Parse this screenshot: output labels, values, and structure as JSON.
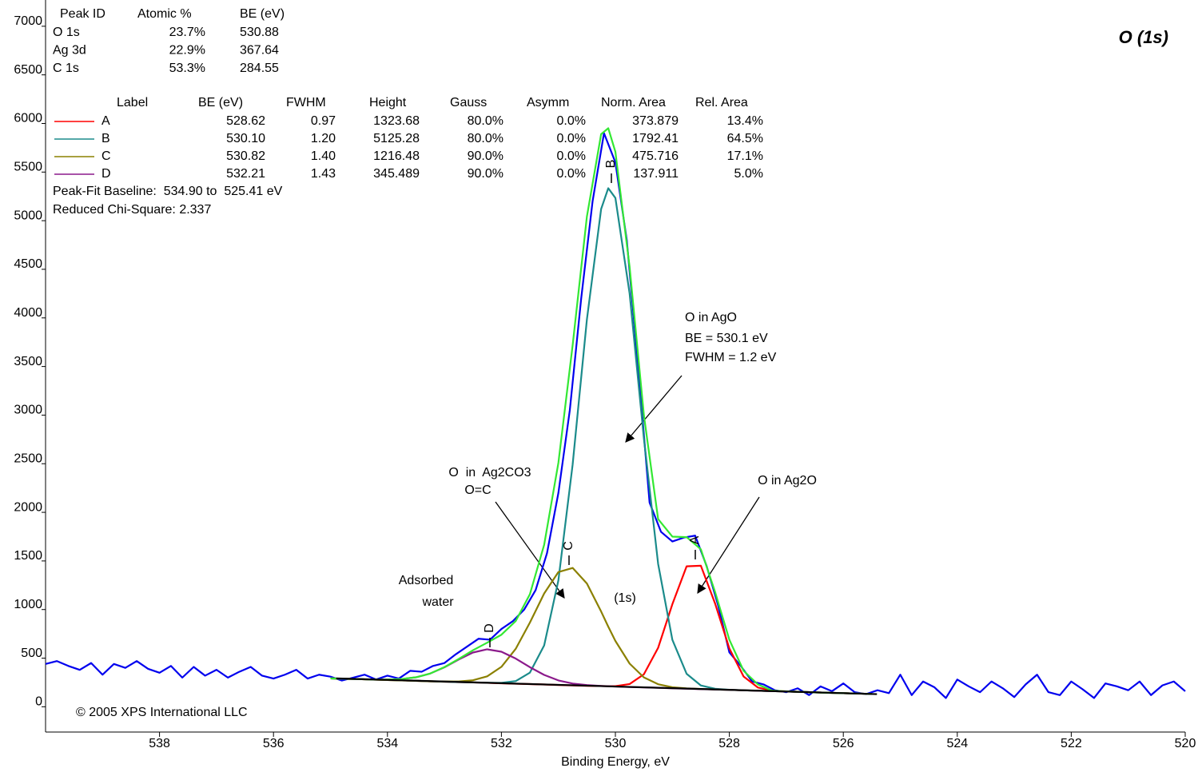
{
  "chart_data": {
    "type": "line",
    "title": "O (1s)",
    "xlabel": "Binding Energy, eV",
    "xlim": [
      540,
      520
    ],
    "xticks": [
      538,
      536,
      534,
      532,
      530,
      528,
      526,
      524,
      522,
      520
    ],
    "ylim": [
      -260,
      7270
    ],
    "yticks": [
      0,
      500,
      1000,
      1500,
      2000,
      2500,
      3000,
      3500,
      4000,
      4500,
      5000,
      5500,
      6000,
      6500,
      7000
    ],
    "fit_x": [
      535,
      534.75,
      534.5,
      534.25,
      534,
      533.75,
      533.5,
      533.25,
      533,
      532.75,
      532.5,
      532.25,
      532,
      531.75,
      531.5,
      531.25,
      531,
      530.75,
      530.5,
      530.25,
      530.125,
      530,
      529.75,
      529.5,
      529.25,
      529,
      528.75,
      528.5,
      528.25,
      528,
      527.75,
      527.5,
      527.25,
      527,
      526.75,
      526.5,
      526.25,
      526,
      525.75,
      525.5
    ],
    "series": [
      {
        "color": "#0000ee",
        "x": [
          540,
          539.8,
          539.6,
          539.4,
          539.2,
          539,
          538.8,
          538.6,
          538.4,
          538.2,
          538,
          537.8,
          537.6,
          537.4,
          537.2,
          537,
          536.8,
          536.6,
          536.4,
          536.2,
          536,
          535.8,
          535.6,
          535.4,
          535.2,
          535,
          534.8,
          534.6,
          534.4,
          534.2,
          534,
          533.8,
          533.6,
          533.4,
          533.2,
          533,
          532.8,
          532.6,
          532.4,
          532.2,
          532,
          531.8,
          531.6,
          531.4,
          531.2,
          531,
          530.8,
          530.6,
          530.4,
          530.2,
          530,
          529.8,
          529.6,
          529.4,
          529.2,
          529,
          528.8,
          528.6,
          528.4,
          528.2,
          528,
          527.8,
          527.6,
          527.4,
          527.2,
          527,
          526.8,
          526.6,
          526.4,
          526.2,
          526,
          525.8,
          525.6,
          525.4,
          525.2,
          525,
          524.8,
          524.6,
          524.4,
          524.2,
          524,
          523.8,
          523.6,
          523.4,
          523.2,
          523,
          522.8,
          522.6,
          522.4,
          522.2,
          522,
          521.8,
          521.6,
          521.4,
          521.2,
          521,
          520.8,
          520.6,
          520.4,
          520.2,
          520
        ],
        "values": [
          440,
          470,
          420,
          380,
          450,
          330,
          440,
          400,
          470,
          390,
          350,
          420,
          300,
          410,
          320,
          380,
          300,
          360,
          410,
          320,
          290,
          330,
          380,
          290,
          330,
          310,
          270,
          300,
          330,
          280,
          320,
          290,
          370,
          360,
          420,
          450,
          540,
          620,
          700,
          690,
          800,
          880,
          1000,
          1200,
          1580,
          2200,
          3050,
          4200,
          5200,
          5900,
          5600,
          4800,
          3500,
          2100,
          1800,
          1700,
          1740,
          1760,
          1450,
          1050,
          560,
          420,
          260,
          230,
          170,
          150,
          190,
          120,
          210,
          160,
          240,
          150,
          130,
          170,
          140,
          330,
          120,
          260,
          200,
          90,
          280,
          210,
          150,
          260,
          190,
          100,
          230,
          330,
          150,
          120,
          260,
          180,
          90,
          240,
          210,
          170,
          260,
          120,
          220,
          260,
          160
        ]
      },
      {
        "name": "A",
        "color": "#ff0000",
        "values": [
          292,
          288,
          284,
          279,
          275,
          271,
          267,
          262,
          258,
          254,
          250,
          246,
          241,
          237,
          233,
          229,
          224,
          220,
          216,
          213,
          212,
          212,
          234,
          334,
          606,
          1055,
          1445,
          1451,
          1062,
          600,
          311,
          198,
          166,
          158,
          153,
          148,
          144,
          140,
          136,
          132
        ]
      },
      {
        "name": "B",
        "color": "#1b8b8b",
        "values": [
          292,
          288,
          284,
          279,
          275,
          271,
          267,
          262,
          258,
          254,
          250,
          247,
          246,
          264,
          351,
          631,
          1301,
          2492,
          3983,
          5120,
          5334,
          5234,
          4250,
          2762,
          1470,
          689,
          339,
          219,
          185,
          175,
          169,
          165,
          161,
          157,
          153,
          148,
          144,
          140,
          136,
          132
        ]
      },
      {
        "name": "C",
        "color": "#8b8000",
        "values": [
          292,
          288,
          284,
          279,
          275,
          271,
          267,
          262,
          260,
          260,
          273,
          313,
          411,
          595,
          866,
          1165,
          1386,
          1428,
          1268,
          980,
          824,
          677,
          444,
          302,
          232,
          201,
          189,
          183,
          178,
          174,
          169,
          165,
          161,
          157,
          153,
          148,
          144,
          140,
          136,
          132
        ]
      },
      {
        "name": "D",
        "color": "#8b1a8b",
        "values": [
          292,
          288,
          284,
          280,
          280,
          285,
          303,
          342,
          406,
          486,
          558,
          591,
          566,
          496,
          407,
          328,
          271,
          239,
          223,
          214,
          211,
          208,
          203,
          199,
          195,
          190,
          186,
          182,
          178,
          174,
          169,
          165,
          161,
          157,
          153,
          148,
          144,
          140,
          136,
          132
        ]
      },
      {
        "color": "#33e833",
        "values": [
          292,
          288,
          284,
          280,
          280,
          285,
          303,
          342,
          408,
          492,
          581,
          659,
          741,
          881,
          1158,
          1666,
          2510,
          3719,
          5042,
          5890,
          5951,
          5709,
          4522,
          3000,
          1930,
          1750,
          1745,
          1620,
          1180,
          690,
          370,
          230,
          166,
          158,
          153,
          148,
          144,
          140,
          136,
          132
        ]
      },
      {
        "color": "#000000",
        "x": [
          534.9,
          525.41
        ],
        "values": [
          292,
          130
        ]
      }
    ],
    "peak_table": {
      "columns": [
        "Peak ID",
        "Atomic %",
        "BE (eV)"
      ],
      "rows": [
        [
          "O 1s",
          "23.7%",
          "530.88"
        ],
        [
          "Ag 3d",
          "22.9%",
          "367.64"
        ],
        [
          "C 1s",
          "53.3%",
          "284.55"
        ]
      ]
    },
    "fit_table": {
      "columns": [
        "Label",
        "BE (eV)",
        "FWHM",
        "Height",
        "Gauss",
        "Asymm",
        "Norm. Area",
        "Rel. Area"
      ],
      "rows": [
        [
          "528.62",
          "0.97",
          "1323.68",
          "80.0%",
          "0.0%",
          "373.879",
          "13.4%"
        ],
        [
          "530.10",
          "1.20",
          "5125.28",
          "80.0%",
          "0.0%",
          "1792.41",
          "64.5%"
        ],
        [
          "530.82",
          "1.40",
          "1216.48",
          "90.0%",
          "0.0%",
          "475.716",
          "17.1%"
        ],
        [
          "532.21",
          "1.43",
          "345.489",
          "90.0%",
          "0.0%",
          "137.911",
          "5.0%"
        ]
      ]
    },
    "fit_notes": [
      "Peak-Fit Baseline:  534.90 to  525.41 eV",
      "Reduced Chi-Square: 2.337"
    ],
    "annotations": [
      "O in AgO",
      "BE = 530.1 eV",
      "FWHM = 1.2 eV",
      "O in Ag2O",
      "O  in  Ag2CO3",
      "O=C",
      "Adsorbed",
      "water",
      "(1s)"
    ],
    "copyright": "© 2005 XPS International LLC"
  }
}
